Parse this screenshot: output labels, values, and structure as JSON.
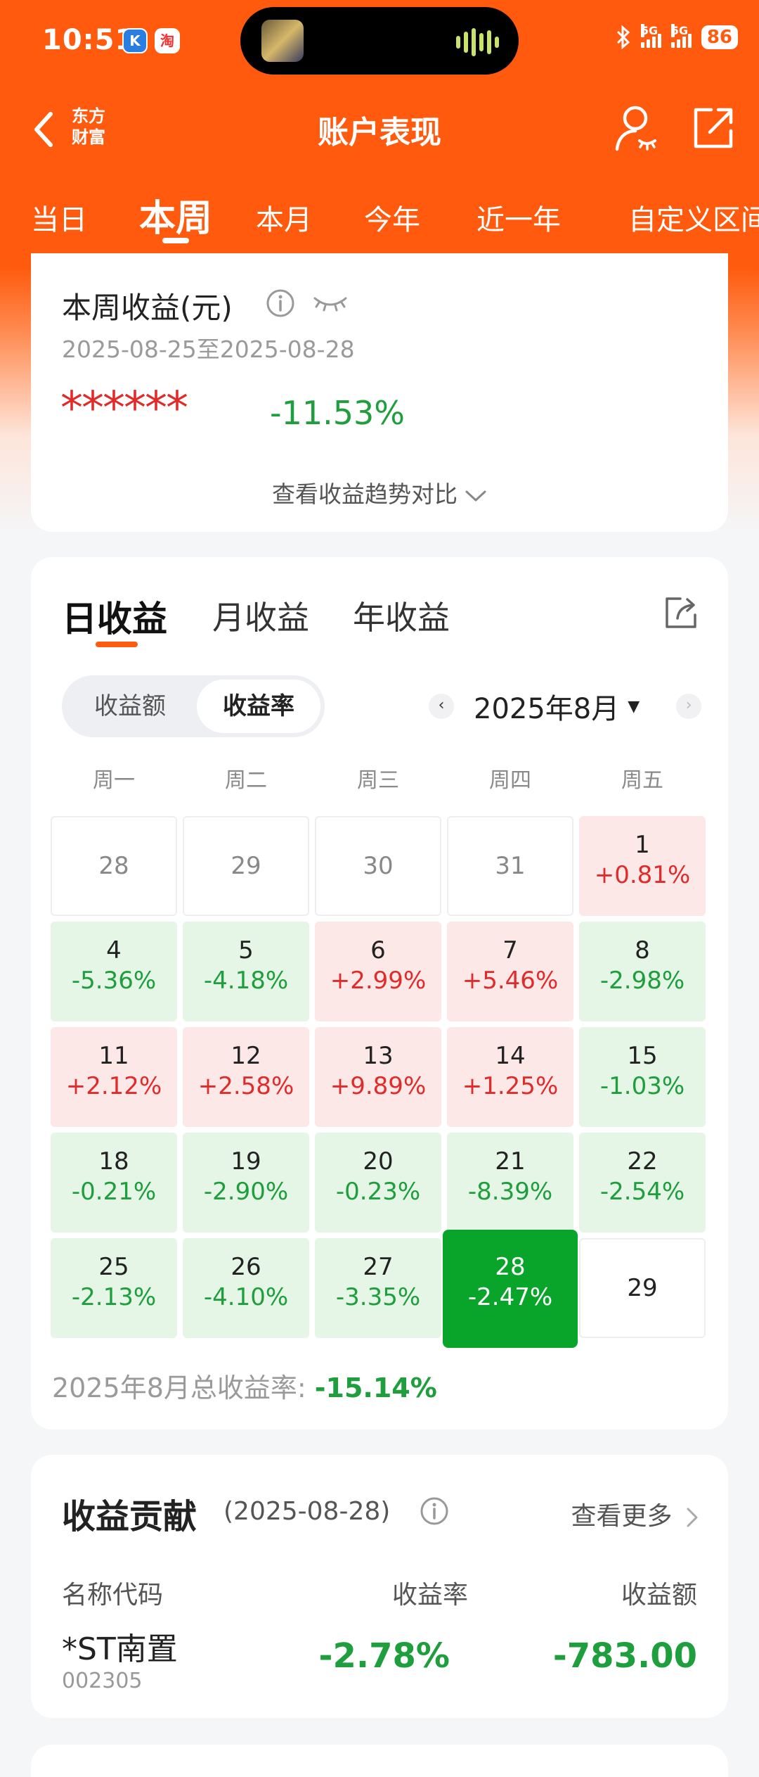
{
  "status_bar": {
    "time": "10:51",
    "app_badge_1": "K",
    "app_badge_2": "淘",
    "network_1": "5G",
    "network_2": "5G",
    "battery": "86"
  },
  "header": {
    "brand_line1": "东方",
    "brand_line2": "财富",
    "title": "账户表现"
  },
  "tabs": [
    "当日",
    "本周",
    "本月",
    "今年",
    "近一年",
    "自定义区间"
  ],
  "week_card": {
    "title": "本周收益(元)",
    "range": "2025-08-25至2025-08-28",
    "hidden_amount": "******",
    "pct": "-11.53%",
    "trend_link": "查看收益趋势对比"
  },
  "daily_card": {
    "tabs": [
      "日收益",
      "月收益",
      "年收益"
    ],
    "segment": [
      "收益额",
      "收益率"
    ],
    "month": "2025年8月",
    "weekdays": [
      "周一",
      "周二",
      "周三",
      "周四",
      "周五"
    ],
    "weeks": [
      [
        {
          "day": "28",
          "pct": ""
        },
        {
          "day": "29",
          "pct": ""
        },
        {
          "day": "30",
          "pct": ""
        },
        {
          "day": "31",
          "pct": ""
        },
        {
          "day": "1",
          "pct": "+0.81%"
        }
      ],
      [
        {
          "day": "4",
          "pct": "-5.36%"
        },
        {
          "day": "5",
          "pct": "-4.18%"
        },
        {
          "day": "6",
          "pct": "+2.99%"
        },
        {
          "day": "7",
          "pct": "+5.46%"
        },
        {
          "day": "8",
          "pct": "-2.98%"
        }
      ],
      [
        {
          "day": "11",
          "pct": "+2.12%"
        },
        {
          "day": "12",
          "pct": "+2.58%"
        },
        {
          "day": "13",
          "pct": "+9.89%"
        },
        {
          "day": "14",
          "pct": "+1.25%"
        },
        {
          "day": "15",
          "pct": "-1.03%"
        }
      ],
      [
        {
          "day": "18",
          "pct": "-0.21%"
        },
        {
          "day": "19",
          "pct": "-2.90%"
        },
        {
          "day": "20",
          "pct": "-0.23%"
        },
        {
          "day": "21",
          "pct": "-8.39%"
        },
        {
          "day": "22",
          "pct": "-2.54%"
        }
      ],
      [
        {
          "day": "25",
          "pct": "-2.13%"
        },
        {
          "day": "26",
          "pct": "-4.10%"
        },
        {
          "day": "27",
          "pct": "-3.35%"
        },
        {
          "day": "28",
          "pct": "-2.47%",
          "selected": true
        },
        {
          "day": "29",
          "pct": ""
        }
      ]
    ],
    "month_total_label": "2025年8月总收益率:",
    "month_total_value": "-15.14%"
  },
  "contribution": {
    "title": "收益贡献",
    "date": "(2025-08-28)",
    "more": "查看更多",
    "columns": [
      "名称代码",
      "收益率",
      "收益额"
    ],
    "rows": [
      {
        "name": "*ST南置",
        "code": "002305",
        "rate": "-2.78%",
        "amount": "-783.00"
      }
    ]
  },
  "colors": {
    "brand": "#ff5a0e",
    "up": "#e12b2b",
    "down": "#1e9e3c",
    "selected": "#09a52a"
  }
}
